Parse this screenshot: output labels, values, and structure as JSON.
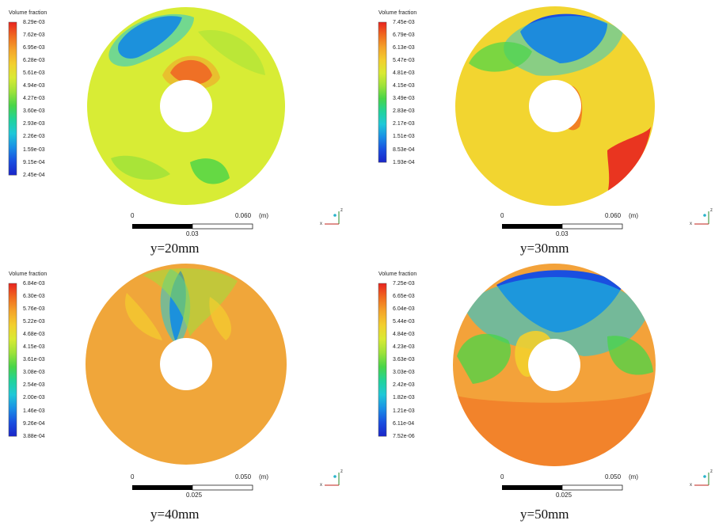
{
  "colorbar_title": "Volume fraction",
  "scale_unit": "(m)",
  "panels": [
    {
      "caption": "y=20mm",
      "ticks": [
        "8.29e-03",
        "7.62e-03",
        "6.95e-03",
        "6.28e-03",
        "5.61e-03",
        "4.94e-03",
        "4.27e-03",
        "3.60e-03",
        "2.93e-03",
        "2.26e-03",
        "1.59e-03",
        "9.15e-04",
        "2.45e-04"
      ],
      "scale": {
        "zero": "0",
        "max": "0.060",
        "mid": "0.03"
      },
      "base_color": "#d8ec35"
    },
    {
      "caption": "y=30mm",
      "ticks": [
        "7.45e-03",
        "6.79e-03",
        "6.13e-03",
        "5.47e-03",
        "4.81e-03",
        "4.15e-03",
        "3.49e-03",
        "2.83e-03",
        "2.17e-03",
        "1.51e-03",
        "8.53e-04",
        "1.93e-04"
      ],
      "scale": {
        "zero": "0",
        "max": "0.060",
        "mid": "0.03"
      },
      "base_color": "#f2d530"
    },
    {
      "caption": "y=40mm",
      "ticks": [
        "6.84e-03",
        "6.30e-03",
        "5.76e-03",
        "5.22e-03",
        "4.68e-03",
        "4.15e-03",
        "3.61e-03",
        "3.08e-03",
        "2.54e-03",
        "2.00e-03",
        "1.46e-03",
        "9.26e-04",
        "3.88e-04"
      ],
      "scale": {
        "zero": "0",
        "max": "0.050",
        "mid": "0.025"
      },
      "base_color": "#f0a63a"
    },
    {
      "caption": "y=50mm",
      "ticks": [
        "7.25e-03",
        "6.65e-03",
        "6.04e-03",
        "5.44e-03",
        "4.84e-03",
        "4.23e-03",
        "3.63e-03",
        "3.03e-03",
        "2.42e-03",
        "1.82e-03",
        "1.21e-03",
        "6.11e-04",
        "7.52e-06"
      ],
      "scale": {
        "zero": "0",
        "max": "0.050",
        "mid": "0.025"
      },
      "base_color": "#f3a23a"
    }
  ],
  "axis_labels": {
    "z": "z",
    "x": "x"
  },
  "colors": {
    "colorbar_stops": [
      "#e8231f",
      "#f06a1f",
      "#f4a42a",
      "#f3cf2e",
      "#d9ea33",
      "#9de23a",
      "#48d548",
      "#21d39a",
      "#1fc8d8",
      "#1a8fe6",
      "#1a4fe0",
      "#1a25c8"
    ]
  }
}
